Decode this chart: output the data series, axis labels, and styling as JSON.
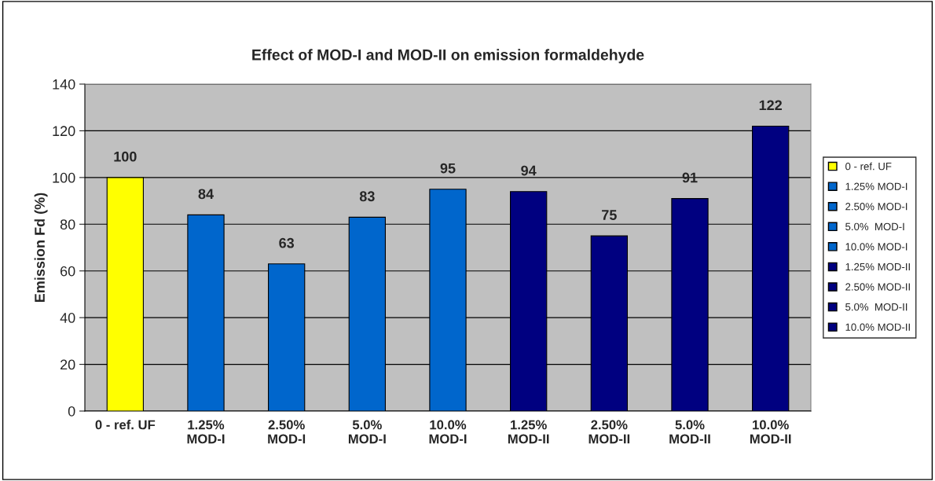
{
  "chart_data": {
    "type": "bar",
    "title": "Effect of MOD-I and MOD-II on emission formaldehyde",
    "ylabel": "Emission Fd (%)",
    "categories": [
      "0 - ref. UF",
      "1.25%\nMOD-I",
      "2.50%\nMOD-I",
      "5.0%\nMOD-I",
      "10.0%\nMOD-I",
      "1.25%\nMOD-II",
      "2.50%\nMOD-II",
      "5.0%\nMOD-II",
      "10.0%\nMOD-II"
    ],
    "series": [
      {
        "name": "0 - ref. UF",
        "color": "#ffff00",
        "values": [
          100,
          null,
          null,
          null,
          null,
          null,
          null,
          null,
          null
        ]
      },
      {
        "name": "1.25% MOD-I",
        "color": "#0066cc",
        "values": [
          null,
          84,
          null,
          null,
          null,
          null,
          null,
          null,
          null
        ]
      },
      {
        "name": "2.50% MOD-I",
        "color": "#0066cc",
        "values": [
          null,
          null,
          63,
          null,
          null,
          null,
          null,
          null,
          null
        ]
      },
      {
        "name": "5.0%  MOD-I",
        "color": "#0066cc",
        "values": [
          null,
          null,
          null,
          83,
          null,
          null,
          null,
          null,
          null
        ]
      },
      {
        "name": "10.0% MOD-I",
        "color": "#0066cc",
        "values": [
          null,
          null,
          null,
          null,
          95,
          null,
          null,
          null,
          null
        ]
      },
      {
        "name": "1.25% MOD-II",
        "color": "#000080",
        "values": [
          null,
          null,
          null,
          null,
          null,
          94,
          null,
          null,
          null
        ]
      },
      {
        "name": "2.50% MOD-II",
        "color": "#000080",
        "values": [
          null,
          null,
          null,
          null,
          null,
          null,
          75,
          null,
          null
        ]
      },
      {
        "name": "5.0%  MOD-II",
        "color": "#000080",
        "values": [
          null,
          null,
          null,
          null,
          null,
          null,
          null,
          91,
          null
        ]
      },
      {
        "name": "10.0% MOD-II",
        "color": "#000080",
        "values": [
          null,
          null,
          null,
          null,
          null,
          null,
          null,
          null,
          122
        ]
      }
    ],
    "ylim": [
      0,
      140
    ],
    "yticks": [
      0,
      20,
      40,
      60,
      80,
      100,
      120,
      140
    ],
    "grid": "y",
    "legend": "right",
    "data_labels": true
  }
}
